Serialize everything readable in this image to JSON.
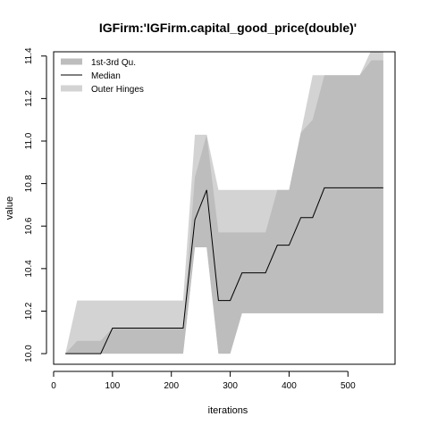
{
  "chart_data": {
    "type": "area",
    "title": "IGFirm:'IGFirm.capital_good_price(double)'",
    "xlabel": "iterations",
    "ylabel": "value",
    "xlim": [
      0,
      580
    ],
    "ylim": [
      9.95,
      11.42
    ],
    "xticks": [
      0,
      100,
      200,
      300,
      400,
      500
    ],
    "yticks": [
      10.0,
      10.2,
      10.4,
      10.6,
      10.8,
      11.0,
      11.2,
      11.4
    ],
    "ytick_labels": [
      "10.0",
      "10.2",
      "10.4",
      "10.6",
      "10.8",
      "11.0",
      "11.2",
      "11.4"
    ],
    "grid": false,
    "legend_position": "top-left",
    "legend": [
      {
        "label": "1st-3rd Qu.",
        "kind": "band",
        "color": "#bdbdbd"
      },
      {
        "label": "Median",
        "kind": "line",
        "color": "#000000"
      },
      {
        "label": "Outer Hinges",
        "kind": "band",
        "color": "#d3d3d3"
      }
    ],
    "x": [
      20,
      40,
      60,
      80,
      100,
      120,
      140,
      160,
      180,
      200,
      220,
      240,
      260,
      280,
      300,
      320,
      340,
      360,
      380,
      400,
      420,
      440,
      460,
      480,
      500,
      520,
      540,
      560
    ],
    "series": [
      {
        "name": "Outer Hinges (lower)",
        "values": [
          10.0,
          10.0,
          10.0,
          10.0,
          10.0,
          10.0,
          10.0,
          10.0,
          10.0,
          10.0,
          10.0,
          10.5,
          10.5,
          10.0,
          10.0,
          10.19,
          10.19,
          10.19,
          10.19,
          10.19,
          10.19,
          10.19,
          10.19,
          10.19,
          10.19,
          10.19,
          10.19,
          10.19
        ]
      },
      {
        "name": "Outer Hinges (upper)",
        "values": [
          10.0,
          10.25,
          10.25,
          10.25,
          10.25,
          10.25,
          10.25,
          10.25,
          10.25,
          10.25,
          10.25,
          11.03,
          11.03,
          10.77,
          10.77,
          10.77,
          10.77,
          10.77,
          10.77,
          10.77,
          11.04,
          11.31,
          11.31,
          11.31,
          11.31,
          11.31,
          11.43,
          11.43
        ]
      },
      {
        "name": "1st-3rd Qu. (lower)",
        "values": [
          10.0,
          10.0,
          10.0,
          10.0,
          10.0,
          10.0,
          10.0,
          10.0,
          10.0,
          10.0,
          10.0,
          10.5,
          10.5,
          10.0,
          10.0,
          10.19,
          10.19,
          10.19,
          10.19,
          10.19,
          10.19,
          10.19,
          10.19,
          10.19,
          10.19,
          10.19,
          10.19,
          10.19
        ]
      },
      {
        "name": "1st-3rd Qu. (upper)",
        "values": [
          10.0,
          10.06,
          10.06,
          10.06,
          10.12,
          10.12,
          10.12,
          10.12,
          10.12,
          10.12,
          10.12,
          10.83,
          11.03,
          10.57,
          10.57,
          10.57,
          10.57,
          10.57,
          10.77,
          10.77,
          11.04,
          11.1,
          11.31,
          11.31,
          11.31,
          11.31,
          11.38,
          11.38
        ]
      },
      {
        "name": "Median",
        "values": [
          10.0,
          10.0,
          10.0,
          10.0,
          10.12,
          10.12,
          10.12,
          10.12,
          10.12,
          10.12,
          10.12,
          10.63,
          10.77,
          10.25,
          10.25,
          10.38,
          10.38,
          10.38,
          10.51,
          10.51,
          10.64,
          10.64,
          10.78,
          10.78,
          10.78,
          10.78,
          10.78,
          10.78
        ]
      }
    ]
  }
}
